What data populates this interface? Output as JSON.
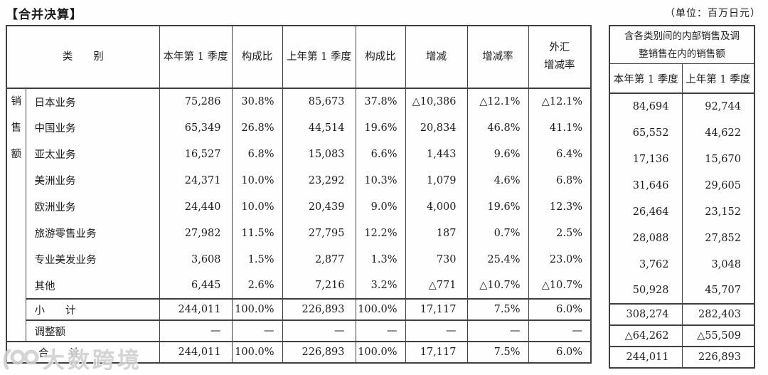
{
  "title": "【合并决算】",
  "unit_note": "（单位：百万日元）",
  "colors": {
    "border": "#3f3f3f",
    "text": "#1c1c1c",
    "watermark": "#cfcfcf",
    "background": "#ffffff"
  },
  "main_table": {
    "category_header": "类　　别",
    "group_label": "销售额",
    "columns": [
      "本年第 1 季度",
      "构成比",
      "上年第 1 季度",
      "构成比",
      "增减",
      "增减率",
      "外汇\n增减率"
    ],
    "rows": [
      {
        "label": "日本业务",
        "values": [
          "75,286",
          "30.8%",
          "85,673",
          "37.8%",
          "△10,386",
          "△12.1%",
          "△12.1%"
        ],
        "sub": [
          "84,694",
          "92,744"
        ]
      },
      {
        "label": "中国业务",
        "values": [
          "65,349",
          "26.8%",
          "44,514",
          "19.6%",
          "20,834",
          "46.8%",
          "41.1%"
        ],
        "sub": [
          "65,552",
          "44,622"
        ]
      },
      {
        "label": "亚太业务",
        "values": [
          "16,527",
          "6.8%",
          "15,083",
          "6.6%",
          "1,443",
          "9.6%",
          "6.4%"
        ],
        "sub": [
          "17,136",
          "15,670"
        ]
      },
      {
        "label": "美洲业务",
        "values": [
          "24,371",
          "10.0%",
          "23,292",
          "10.3%",
          "1,079",
          "4.6%",
          "6.8%"
        ],
        "sub": [
          "31,646",
          "29,605"
        ]
      },
      {
        "label": "欧洲业务",
        "values": [
          "24,440",
          "10.0%",
          "20,439",
          "9.0%",
          "4,000",
          "19.6%",
          "12.3%"
        ],
        "sub": [
          "26,464",
          "23,152"
        ]
      },
      {
        "label": "旅游零售业务",
        "values": [
          "27,982",
          "11.5%",
          "27,795",
          "12.2%",
          "187",
          "0.7%",
          "2.5%"
        ],
        "sub": [
          "28,088",
          "27,852"
        ]
      },
      {
        "label": "专业美发业务",
        "values": [
          "3,608",
          "1.5%",
          "2,877",
          "1.3%",
          "730",
          "25.4%",
          "23.0%"
        ],
        "sub": [
          "3,762",
          "3,048"
        ]
      },
      {
        "label": "其他",
        "values": [
          "6,445",
          "2.6%",
          "7,216",
          "3.2%",
          "△771",
          "△10.7%",
          "△10.7%"
        ],
        "sub": [
          "50,928",
          "45,707"
        ]
      }
    ],
    "summary_rows": [
      {
        "label": "小　　计",
        "values": [
          "244,011",
          "100.0%",
          "226,893",
          "100.0%",
          "17,117",
          "7.5%",
          "6.0%"
        ],
        "sub": [
          "308,274",
          "282,403"
        ]
      },
      {
        "label": "调整额",
        "values": [
          "—",
          "—",
          "—",
          "—",
          "—",
          "—",
          "—"
        ],
        "sub": [
          "△64,262",
          "△55,509"
        ]
      },
      {
        "label": "合　　计",
        "values": [
          "244,011",
          "100.0%",
          "226,893",
          "100.0%",
          "17,117",
          "7.5%",
          "6.0%"
        ],
        "sub": [
          "244,011",
          "226,893"
        ]
      }
    ]
  },
  "sub_table": {
    "title": "含各类别间的内部销售及调\n整销售在内的销售额",
    "headers": [
      "本年第 1 季度",
      "上年第 1 季度"
    ]
  },
  "watermark": {
    "logo": "100",
    "text": "大数跨境"
  }
}
